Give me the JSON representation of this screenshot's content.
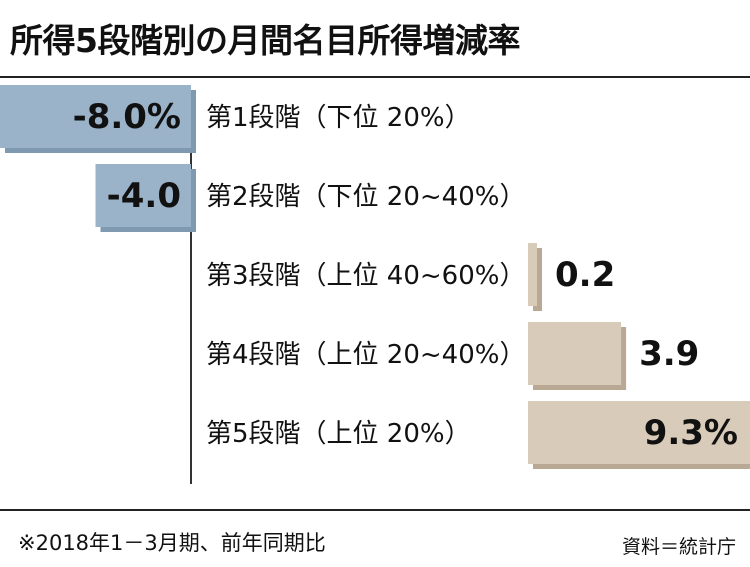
{
  "title": "所得5段階別の月間名目所得増減率",
  "chart_data": {
    "type": "bar",
    "orientation": "horizontal",
    "categories": [
      "第1段階（下位 20%）",
      "第2段階（下位 20~40%）",
      "第3段階（上位 40~60%）",
      "第4段階（上位 20~40%）",
      "第5段階（上位 20%）"
    ],
    "values": [
      -8.0,
      -4.0,
      0.2,
      3.9,
      9.3
    ],
    "value_labels": [
      "-8.0%",
      "-4.0",
      "0.2",
      "3.9",
      "9.3%"
    ],
    "xlim": [
      -8.0,
      9.3
    ]
  },
  "colors": {
    "negative": "#9bb3c8",
    "negative_shadow": "#7f99b0",
    "positive": "#d8cbb9",
    "positive_shadow": "#b9a994",
    "axis": "#333333"
  },
  "footnote": "※2018年1－3月期、前年同期比",
  "source": "資料＝統計庁"
}
